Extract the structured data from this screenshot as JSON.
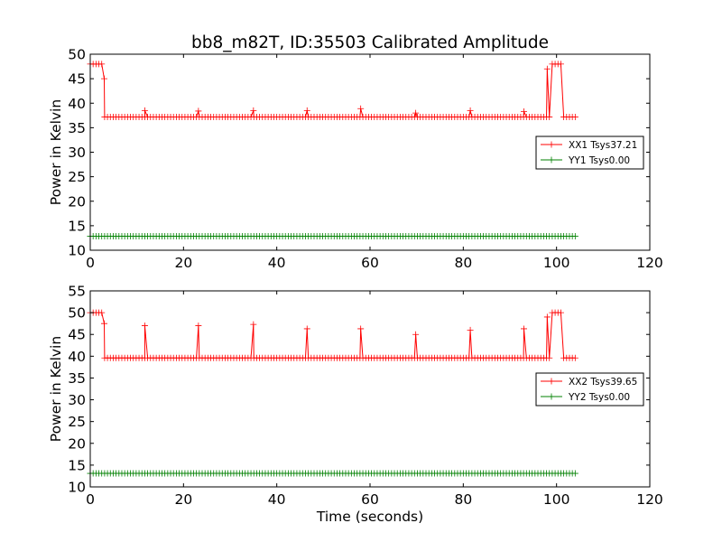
{
  "chart_data": [
    {
      "type": "line",
      "title": "bb8_m82T, ID:35503 Calibrated Amplitude",
      "xlabel": "",
      "ylabel": "Power in Kelvin",
      "xlim": [
        0,
        120
      ],
      "ylim": [
        10,
        50
      ],
      "xticks": [
        0,
        20,
        40,
        60,
        80,
        100,
        120
      ],
      "yticks": [
        10,
        15,
        20,
        25,
        30,
        35,
        40,
        45,
        50
      ],
      "legend": "center-right",
      "grid": false,
      "series": [
        {
          "name": "XX1 Tsys37.21",
          "color": "#ff0000",
          "x_start": 0,
          "x_end": 104,
          "n_points": 170,
          "baseline": 37.2,
          "plateau_value": 48,
          "plateau_ranges": [
            [
              0,
              2.5
            ],
            [
              98.5,
              101
            ]
          ],
          "transition_points": [
            [
              3.0,
              45.0
            ],
            [
              98.0,
              47.0
            ]
          ],
          "spikes": [
            [
              11.7,
              38.5
            ],
            [
              23.2,
              38.4
            ],
            [
              35.0,
              38.5
            ],
            [
              46.5,
              38.5
            ],
            [
              58.0,
              38.9
            ],
            [
              69.8,
              38.0
            ],
            [
              81.5,
              38.5
            ],
            [
              93.0,
              38.3
            ]
          ]
        },
        {
          "name": "YY1 Tsys0.00",
          "color": "#008000",
          "x_start": 0,
          "x_end": 104,
          "n_points": 170,
          "baseline": 12.85
        }
      ]
    },
    {
      "type": "line",
      "title": "",
      "xlabel": "Time (seconds)",
      "ylabel": "Power in Kelvin",
      "xlim": [
        0,
        120
      ],
      "ylim": [
        10,
        55
      ],
      "xticks": [
        0,
        20,
        40,
        60,
        80,
        100,
        120
      ],
      "yticks": [
        10,
        15,
        20,
        25,
        30,
        35,
        40,
        45,
        50,
        55
      ],
      "legend": "center-right",
      "grid": false,
      "series": [
        {
          "name": "XX2 Tsys39.65",
          "color": "#ff0000",
          "x_start": 0,
          "x_end": 104,
          "n_points": 170,
          "baseline": 39.6,
          "plateau_value": 50,
          "plateau_ranges": [
            [
              0,
              2.5
            ],
            [
              98.5,
              101
            ]
          ],
          "transition_points": [
            [
              3.0,
              47.5
            ],
            [
              98.0,
              49.0
            ]
          ],
          "spikes": [
            [
              11.7,
              47.0
            ],
            [
              23.2,
              47.0
            ],
            [
              35.0,
              47.3
            ],
            [
              46.5,
              46.3
            ],
            [
              58.0,
              46.3
            ],
            [
              69.8,
              45.0
            ],
            [
              81.5,
              46.0
            ],
            [
              93.0,
              46.3
            ]
          ]
        },
        {
          "name": "YY2 Tsys0.00",
          "color": "#008000",
          "x_start": 0,
          "x_end": 104,
          "n_points": 170,
          "baseline": 13.1
        }
      ]
    }
  ]
}
